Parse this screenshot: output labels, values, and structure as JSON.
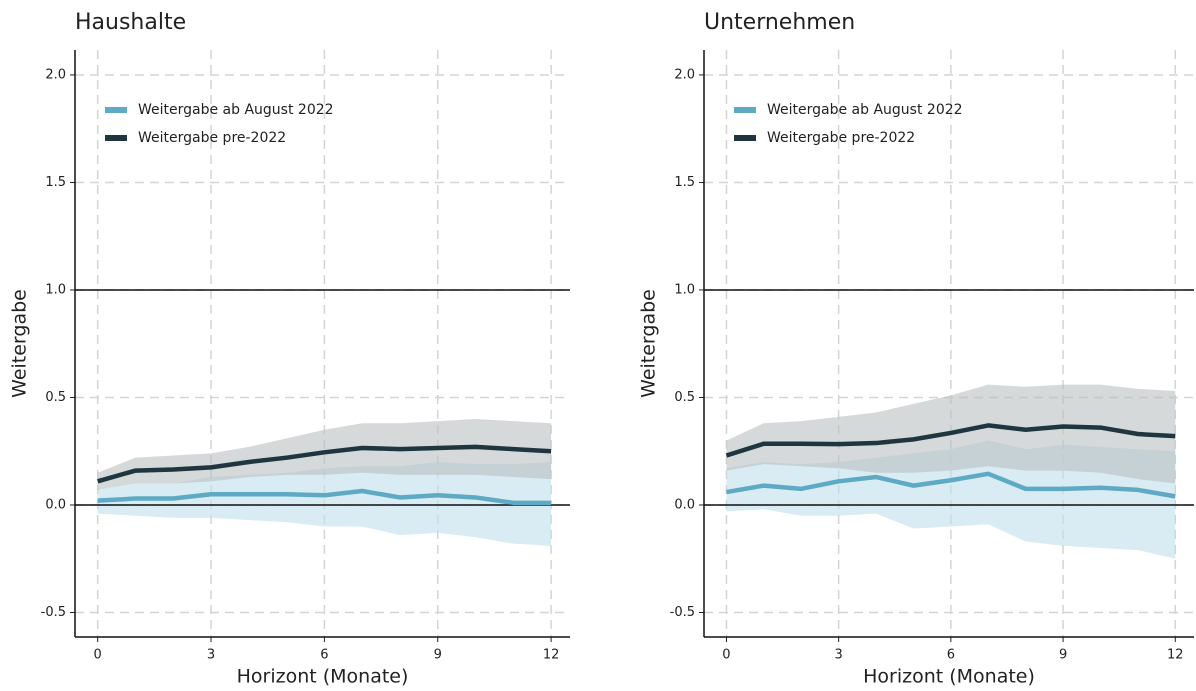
{
  "chart_data": [
    {
      "type": "line",
      "title": "Haushalte",
      "x_label": "Horizont (Monate)",
      "y_label": "Weitergabe",
      "x": [
        0,
        1,
        2,
        3,
        4,
        5,
        6,
        7,
        8,
        9,
        10,
        11,
        12
      ],
      "xlim": [
        -0.6,
        12.5
      ],
      "xticks": [
        0,
        3,
        6,
        9,
        12
      ],
      "ylim": [
        -0.614,
        2.116
      ],
      "yticks": [
        {
          "value": -0.5,
          "label": "-0.5"
        },
        {
          "value": 0,
          "label": "0.0"
        },
        0.5,
        {
          "value": 1,
          "label": "1.0"
        },
        1.5,
        {
          "value": 2,
          "label": "2.0"
        }
      ],
      "hlines": [
        0,
        1
      ],
      "grid": true,
      "legend": "top-left",
      "series": [
        {
          "name": "Weitergabe ab August 2022",
          "color": "#5eaac4",
          "band_color": "#bfe0ec",
          "values": [
            0.02,
            0.03,
            0.03,
            0.05,
            0.05,
            0.05,
            0.045,
            0.065,
            0.035,
            0.045,
            0.035,
            0.01,
            0.01
          ],
          "upper": [
            0.07,
            0.1,
            0.1,
            0.13,
            0.14,
            0.15,
            0.17,
            0.18,
            0.18,
            0.2,
            0.19,
            0.19,
            0.2
          ],
          "lower": [
            -0.04,
            -0.05,
            -0.06,
            -0.06,
            -0.07,
            -0.08,
            -0.1,
            -0.1,
            -0.14,
            -0.13,
            -0.15,
            -0.18,
            -0.19
          ]
        },
        {
          "name": "Weitergabe pre-2022",
          "color": "#1f3641",
          "band_color": "#b9bfc0",
          "values": [
            0.11,
            0.16,
            0.165,
            0.175,
            0.2,
            0.22,
            0.245,
            0.265,
            0.26,
            0.265,
            0.27,
            0.26,
            0.25
          ],
          "upper": [
            0.15,
            0.22,
            0.23,
            0.24,
            0.27,
            0.31,
            0.35,
            0.38,
            0.38,
            0.39,
            0.4,
            0.39,
            0.38
          ],
          "lower": [
            0.07,
            0.1,
            0.1,
            0.11,
            0.13,
            0.14,
            0.14,
            0.15,
            0.14,
            0.14,
            0.14,
            0.13,
            0.12
          ]
        }
      ]
    },
    {
      "type": "line",
      "title": "Unternehmen",
      "x_label": "Horizont (Monate)",
      "y_label": "Weitergabe",
      "x": [
        0,
        1,
        2,
        3,
        4,
        5,
        6,
        7,
        8,
        9,
        10,
        11,
        12
      ],
      "xlim": [
        -0.6,
        12.5
      ],
      "xticks": [
        0,
        3,
        6,
        9,
        12
      ],
      "ylim": [
        -0.614,
        2.116
      ],
      "yticks": [
        {
          "value": -0.5,
          "label": "-0.5"
        },
        {
          "value": 0,
          "label": "0.0"
        },
        0.5,
        {
          "value": 1,
          "label": "1.0"
        },
        1.5,
        {
          "value": 2,
          "label": "2.0"
        }
      ],
      "hlines": [
        0,
        1
      ],
      "grid": true,
      "legend": "top-left",
      "series": [
        {
          "name": "Weitergabe ab August 2022",
          "color": "#5eaac4",
          "band_color": "#bfe0ec",
          "values": [
            0.06,
            0.09,
            0.075,
            0.11,
            0.13,
            0.09,
            0.115,
            0.145,
            0.075,
            0.075,
            0.08,
            0.07,
            0.04
          ],
          "upper": [
            0.17,
            0.2,
            0.19,
            0.2,
            0.22,
            0.24,
            0.26,
            0.3,
            0.26,
            0.28,
            0.27,
            0.26,
            0.25
          ],
          "lower": [
            -0.03,
            -0.02,
            -0.05,
            -0.05,
            -0.04,
            -0.11,
            -0.1,
            -0.09,
            -0.17,
            -0.19,
            -0.2,
            -0.21,
            -0.25
          ]
        },
        {
          "name": "Weitergabe pre-2022",
          "color": "#1f3641",
          "band_color": "#b9bfc0",
          "values": [
            0.23,
            0.285,
            0.285,
            0.283,
            0.288,
            0.305,
            0.335,
            0.37,
            0.35,
            0.365,
            0.36,
            0.33,
            0.32
          ],
          "upper": [
            0.3,
            0.38,
            0.39,
            0.41,
            0.43,
            0.47,
            0.51,
            0.56,
            0.55,
            0.56,
            0.56,
            0.54,
            0.53
          ],
          "lower": [
            0.16,
            0.19,
            0.18,
            0.17,
            0.15,
            0.15,
            0.16,
            0.18,
            0.16,
            0.16,
            0.15,
            0.12,
            0.1
          ]
        }
      ]
    }
  ]
}
